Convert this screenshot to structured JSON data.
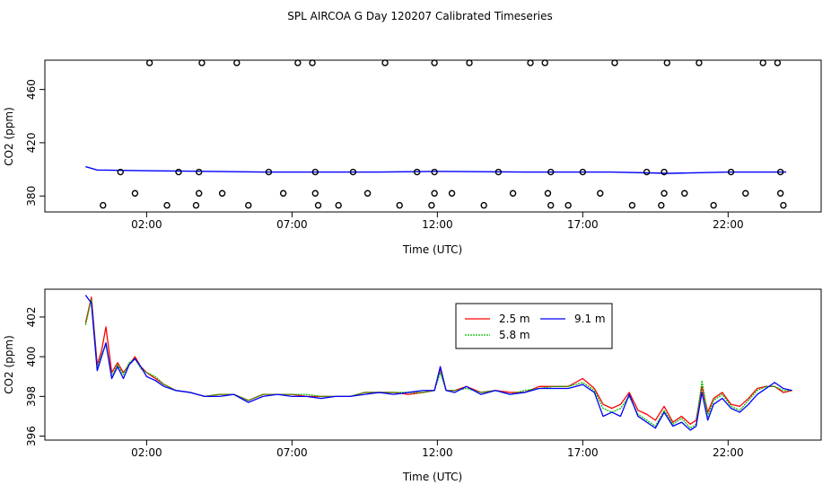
{
  "title": "SPL AIRCOA G  Day 120207  Calibrated Timeseries",
  "colors": {
    "2.5 m": "#ff0000",
    "5.8 m": "#00bb00",
    "9.1 m": "#0000ff"
  },
  "chart_data": [
    {
      "type": "scatter",
      "xlabel": "Time (UTC)",
      "ylabel": "CO2 (ppm)",
      "xlim": [
        -1.5,
        25.2
      ],
      "ylim": [
        368,
        482
      ],
      "xticks": [
        2,
        7,
        12,
        17,
        22
      ],
      "xtick_labels": [
        "02:00",
        "07:00",
        "12:00",
        "17:00",
        "22:00"
      ],
      "yticks": [
        380,
        420,
        460
      ],
      "ytick_labels": [
        "380",
        "420",
        "460"
      ],
      "cal_points": [
        [
          0.5,
          373
        ],
        [
          1.1,
          398
        ],
        [
          1.6,
          382
        ],
        [
          2.1,
          480
        ],
        [
          2.7,
          373
        ],
        [
          3.1,
          398
        ],
        [
          3.7,
          373
        ],
        [
          3.8,
          382
        ],
        [
          3.8,
          398
        ],
        [
          3.9,
          480
        ],
        [
          4.6,
          382
        ],
        [
          5.1,
          480
        ],
        [
          5.5,
          373
        ],
        [
          6.2,
          398
        ],
        [
          6.7,
          382
        ],
        [
          7.2,
          480
        ],
        [
          7.7,
          480
        ],
        [
          7.8,
          382
        ],
        [
          7.8,
          398
        ],
        [
          7.9,
          373
        ],
        [
          8.6,
          373
        ],
        [
          9.1,
          398
        ],
        [
          9.6,
          382
        ],
        [
          10.2,
          480
        ],
        [
          10.7,
          373
        ],
        [
          11.3,
          398
        ],
        [
          11.8,
          373
        ],
        [
          11.9,
          398
        ],
        [
          11.9,
          382
        ],
        [
          11.9,
          480
        ],
        [
          12.5,
          382
        ],
        [
          13.1,
          480
        ],
        [
          13.6,
          373
        ],
        [
          14.1,
          398
        ],
        [
          14.6,
          382
        ],
        [
          15.2,
          480
        ],
        [
          15.7,
          480
        ],
        [
          15.8,
          382
        ],
        [
          15.9,
          398
        ],
        [
          15.9,
          373
        ],
        [
          16.5,
          373
        ],
        [
          17.0,
          398
        ],
        [
          17.6,
          382
        ],
        [
          18.1,
          480
        ],
        [
          18.7,
          373
        ],
        [
          19.2,
          398
        ],
        [
          19.7,
          373
        ],
        [
          19.8,
          398
        ],
        [
          19.8,
          382
        ],
        [
          19.9,
          480
        ],
        [
          20.5,
          382
        ],
        [
          21.0,
          480
        ],
        [
          21.5,
          373
        ],
        [
          22.1,
          398
        ],
        [
          22.6,
          382
        ],
        [
          23.2,
          480
        ],
        [
          23.7,
          480
        ],
        [
          23.8,
          382
        ],
        [
          23.8,
          398
        ],
        [
          23.9,
          373
        ]
      ],
      "line": [
        [
          -0.1,
          402
        ],
        [
          0.3,
          399.5
        ],
        [
          2.0,
          399
        ],
        [
          6.0,
          398
        ],
        [
          10.0,
          398
        ],
        [
          12.0,
          398.5
        ],
        [
          15.0,
          398
        ],
        [
          18.0,
          398
        ],
        [
          20.0,
          397
        ],
        [
          22.0,
          398
        ],
        [
          24.0,
          398
        ]
      ]
    },
    {
      "type": "line",
      "xlabel": "Time (UTC)",
      "ylabel": "CO2 (ppm)",
      "xlim": [
        -1.5,
        25.2
      ],
      "ylim": [
        395.8,
        403.4
      ],
      "xticks": [
        2,
        7,
        12,
        17,
        22
      ],
      "xtick_labels": [
        "02:00",
        "07:00",
        "12:00",
        "17:00",
        "22:00"
      ],
      "yticks": [
        396,
        398,
        400,
        402
      ],
      "ytick_labels": [
        "396",
        "398",
        "400",
        "402"
      ],
      "legend_position": "top-center",
      "x": [
        -0.1,
        0.1,
        0.3,
        0.45,
        0.6,
        0.8,
        1.0,
        1.2,
        1.4,
        1.6,
        1.8,
        2.0,
        2.3,
        2.6,
        3.0,
        3.5,
        4.0,
        4.5,
        5.0,
        5.5,
        6.0,
        6.5,
        7.0,
        7.5,
        8.0,
        8.5,
        9.0,
        9.5,
        10.0,
        10.5,
        11.0,
        11.5,
        11.9,
        12.1,
        12.3,
        12.6,
        13.0,
        13.5,
        14.0,
        14.5,
        15.0,
        15.5,
        16.0,
        16.5,
        17.0,
        17.4,
        17.7,
        18.0,
        18.3,
        18.6,
        18.9,
        19.2,
        19.5,
        19.8,
        20.1,
        20.4,
        20.7,
        20.9,
        21.1,
        21.3,
        21.5,
        21.8,
        22.1,
        22.4,
        22.7,
        23.0,
        23.3,
        23.6,
        23.9,
        24.2
      ],
      "series": [
        {
          "name": "2.5 m",
          "values": [
            401.7,
            403.0,
            399.6,
            400.3,
            401.5,
            399.2,
            399.7,
            399.2,
            399.6,
            400.0,
            399.5,
            399.2,
            398.9,
            398.6,
            398.3,
            398.2,
            398.0,
            398.1,
            398.1,
            397.8,
            398.1,
            398.1,
            398.1,
            398.0,
            398.0,
            398.0,
            398.0,
            398.2,
            398.2,
            398.2,
            398.1,
            398.2,
            398.3,
            399.4,
            398.3,
            398.3,
            398.5,
            398.2,
            398.3,
            398.2,
            398.2,
            398.5,
            398.5,
            398.5,
            398.9,
            398.4,
            397.6,
            397.4,
            397.6,
            398.2,
            397.3,
            397.1,
            396.8,
            397.5,
            396.7,
            397.0,
            396.6,
            396.8,
            398.5,
            397.2,
            397.9,
            398.2,
            397.6,
            397.5,
            397.9,
            398.4,
            398.5,
            398.5,
            398.2,
            398.3
          ]
        },
        {
          "name": "5.8 m",
          "values": [
            401.6,
            402.9,
            399.4,
            400.1,
            400.6,
            399.0,
            399.6,
            399.1,
            399.7,
            399.9,
            399.4,
            399.2,
            399.0,
            398.6,
            398.3,
            398.2,
            398.0,
            398.1,
            398.1,
            397.8,
            398.1,
            398.1,
            398.1,
            398.1,
            398.0,
            398.0,
            398.0,
            398.2,
            398.2,
            398.2,
            398.2,
            398.2,
            398.3,
            399.2,
            398.3,
            398.3,
            398.4,
            398.2,
            398.3,
            398.1,
            398.3,
            398.4,
            398.5,
            398.5,
            398.7,
            398.3,
            397.4,
            397.2,
            397.4,
            398.0,
            397.1,
            396.8,
            396.5,
            397.3,
            396.6,
            396.9,
            396.4,
            396.6,
            398.8,
            397.0,
            397.8,
            398.1,
            397.5,
            397.3,
            397.8,
            398.3,
            398.5,
            398.5,
            398.3,
            398.3
          ]
        },
        {
          "name": "9.1 m",
          "values": [
            403.1,
            402.7,
            399.3,
            400.0,
            400.7,
            398.9,
            399.5,
            398.9,
            399.6,
            399.9,
            399.5,
            399.0,
            398.8,
            398.5,
            398.3,
            398.2,
            398.0,
            398.0,
            398.1,
            397.7,
            398.0,
            398.1,
            398.0,
            398.0,
            397.9,
            398.0,
            398.0,
            398.1,
            398.2,
            398.1,
            398.2,
            398.3,
            398.3,
            399.5,
            398.3,
            398.2,
            398.5,
            398.1,
            398.3,
            398.1,
            398.2,
            398.4,
            398.4,
            398.4,
            398.6,
            398.2,
            397.0,
            397.2,
            397.0,
            398.1,
            397.0,
            396.7,
            396.4,
            397.2,
            396.5,
            396.7,
            396.3,
            396.5,
            398.2,
            396.8,
            397.6,
            397.9,
            397.4,
            397.2,
            397.6,
            398.1,
            398.4,
            398.7,
            398.4,
            398.3
          ]
        }
      ]
    }
  ]
}
